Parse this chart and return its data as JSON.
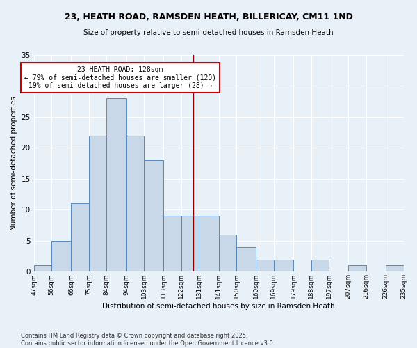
{
  "title": "23, HEATH ROAD, RAMSDEN HEATH, BILLERICAY, CM11 1ND",
  "subtitle": "Size of property relative to semi-detached houses in Ramsden Heath",
  "xlabel": "Distribution of semi-detached houses by size in Ramsden Heath",
  "ylabel": "Number of semi-detached properties",
  "bins": [
    47,
    56,
    66,
    75,
    84,
    94,
    103,
    113,
    122,
    131,
    141,
    150,
    160,
    169,
    179,
    188,
    197,
    207,
    216,
    226,
    235
  ],
  "counts": [
    1,
    5,
    11,
    22,
    28,
    22,
    18,
    9,
    9,
    9,
    6,
    4,
    2,
    2,
    0,
    2,
    0,
    1,
    0,
    1
  ],
  "bar_facecolor": "#c8d8e8",
  "bar_edgecolor": "#5588bb",
  "marker_value": 128,
  "marker_color": "#8b0000",
  "annotation_title": "23 HEATH ROAD: 128sqm",
  "annotation_line1": "← 79% of semi-detached houses are smaller (120)",
  "annotation_line2": "19% of semi-detached houses are larger (28) →",
  "annotation_box_facecolor": "#ffffff",
  "annotation_box_edgecolor": "#cc0000",
  "ylim": [
    0,
    35
  ],
  "yticks": [
    0,
    5,
    10,
    15,
    20,
    25,
    30,
    35
  ],
  "tick_labels": [
    "47sqm",
    "56sqm",
    "66sqm",
    "75sqm",
    "84sqm",
    "94sqm",
    "103sqm",
    "113sqm",
    "122sqm",
    "131sqm",
    "141sqm",
    "150sqm",
    "160sqm",
    "169sqm",
    "179sqm",
    "188sqm",
    "197sqm",
    "207sqm",
    "216sqm",
    "226sqm",
    "235sqm"
  ],
  "background_color": "#e8f0f8",
  "footer_line1": "Contains HM Land Registry data © Crown copyright and database right 2025.",
  "footer_line2": "Contains public sector information licensed under the Open Government Licence v3.0."
}
